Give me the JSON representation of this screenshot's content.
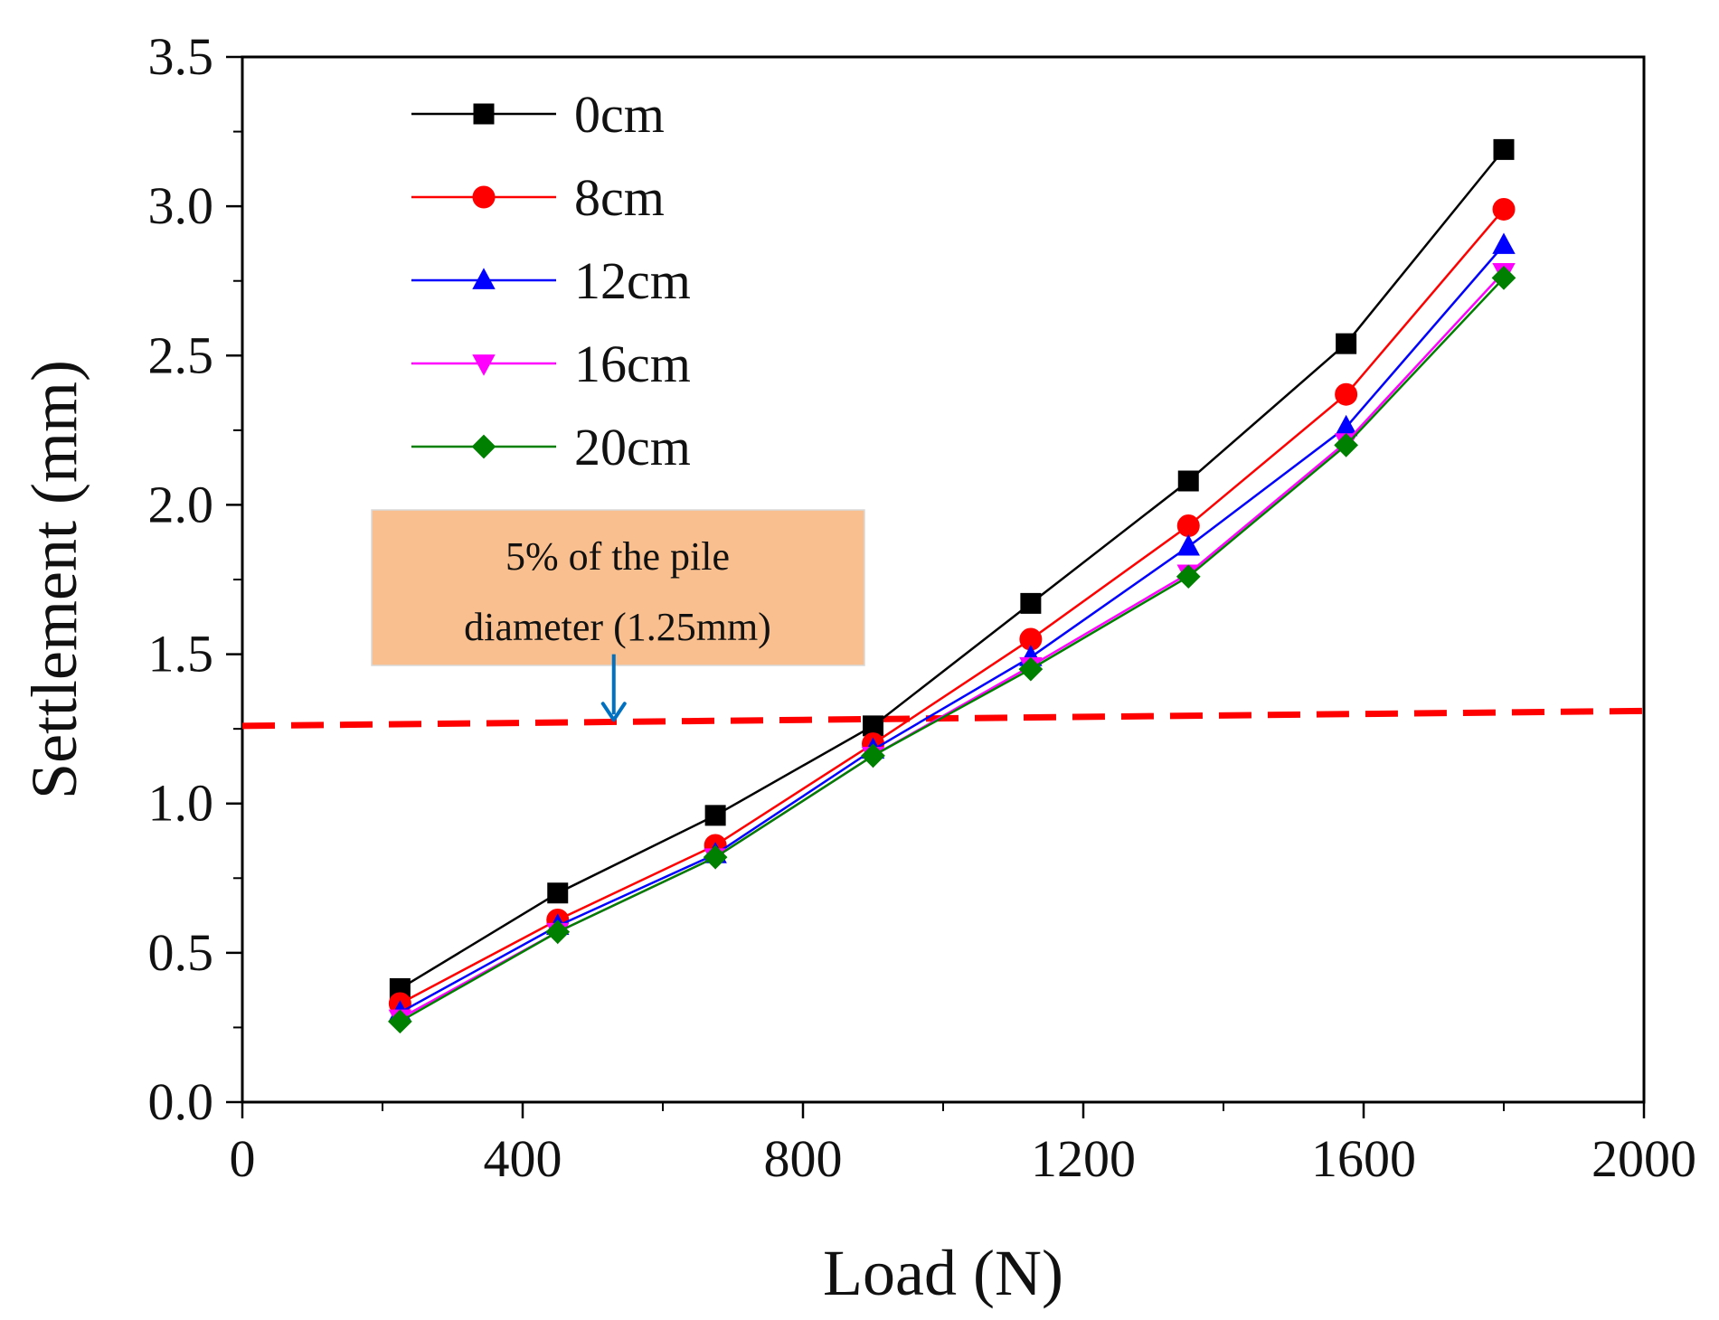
{
  "chart_data": {
    "type": "line",
    "title": "",
    "xlabel": "Load (N)",
    "ylabel": "Settlement (mm)",
    "xlim": [
      0,
      2000
    ],
    "ylim": [
      0.0,
      3.5
    ],
    "x_ticks": [
      0,
      400,
      800,
      1200,
      1600,
      2000
    ],
    "x_tick_labels": [
      "0",
      "400",
      "800",
      "1200",
      "1600",
      "2000"
    ],
    "y_ticks": [
      0.0,
      0.5,
      1.0,
      1.5,
      2.0,
      2.5,
      3.0,
      3.5
    ],
    "y_tick_labels": [
      "0.0",
      "0.5",
      "1.0",
      "1.5",
      "2.0",
      "2.5",
      "3.0",
      "3.5"
    ],
    "grid": false,
    "legend": {
      "position": "top-left"
    },
    "x": [
      225,
      450,
      675,
      900,
      1125,
      1350,
      1575,
      1800
    ],
    "series": [
      {
        "name": "0cm",
        "marker": "square",
        "color": "#000000",
        "values": [
          0.38,
          0.7,
          0.96,
          1.26,
          1.67,
          2.08,
          2.54,
          3.19
        ]
      },
      {
        "name": "8cm",
        "marker": "circle",
        "color": "#ff0000",
        "values": [
          0.33,
          0.61,
          0.86,
          1.2,
          1.55,
          1.93,
          2.37,
          2.99
        ]
      },
      {
        "name": "12cm",
        "marker": "triangle-up",
        "color": "#0000ff",
        "values": [
          0.3,
          0.59,
          0.83,
          1.18,
          1.49,
          1.86,
          2.26,
          2.87
        ]
      },
      {
        "name": "16cm",
        "marker": "triangle-down",
        "color": "#ff00ff",
        "values": [
          0.28,
          0.57,
          0.82,
          1.16,
          1.46,
          1.77,
          2.21,
          2.78
        ]
      },
      {
        "name": "20cm",
        "marker": "diamond",
        "color": "#008000",
        "values": [
          0.27,
          0.57,
          0.82,
          1.16,
          1.45,
          1.76,
          2.2,
          2.76
        ]
      }
    ],
    "reference_line": {
      "label": "5% of the pile diameter (1.25mm)",
      "color": "#ff0000",
      "points": [
        [
          0,
          1.26
        ],
        [
          2000,
          1.31
        ]
      ]
    },
    "annotation": {
      "lines": [
        "5% of the pile",
        "diameter  (1.25mm)"
      ],
      "fill": "#f9bf8f",
      "arrow_color": "#0070c0",
      "arrow_x": 530,
      "arrow_from_y": 1.5,
      "arrow_to_y": 1.28
    }
  }
}
